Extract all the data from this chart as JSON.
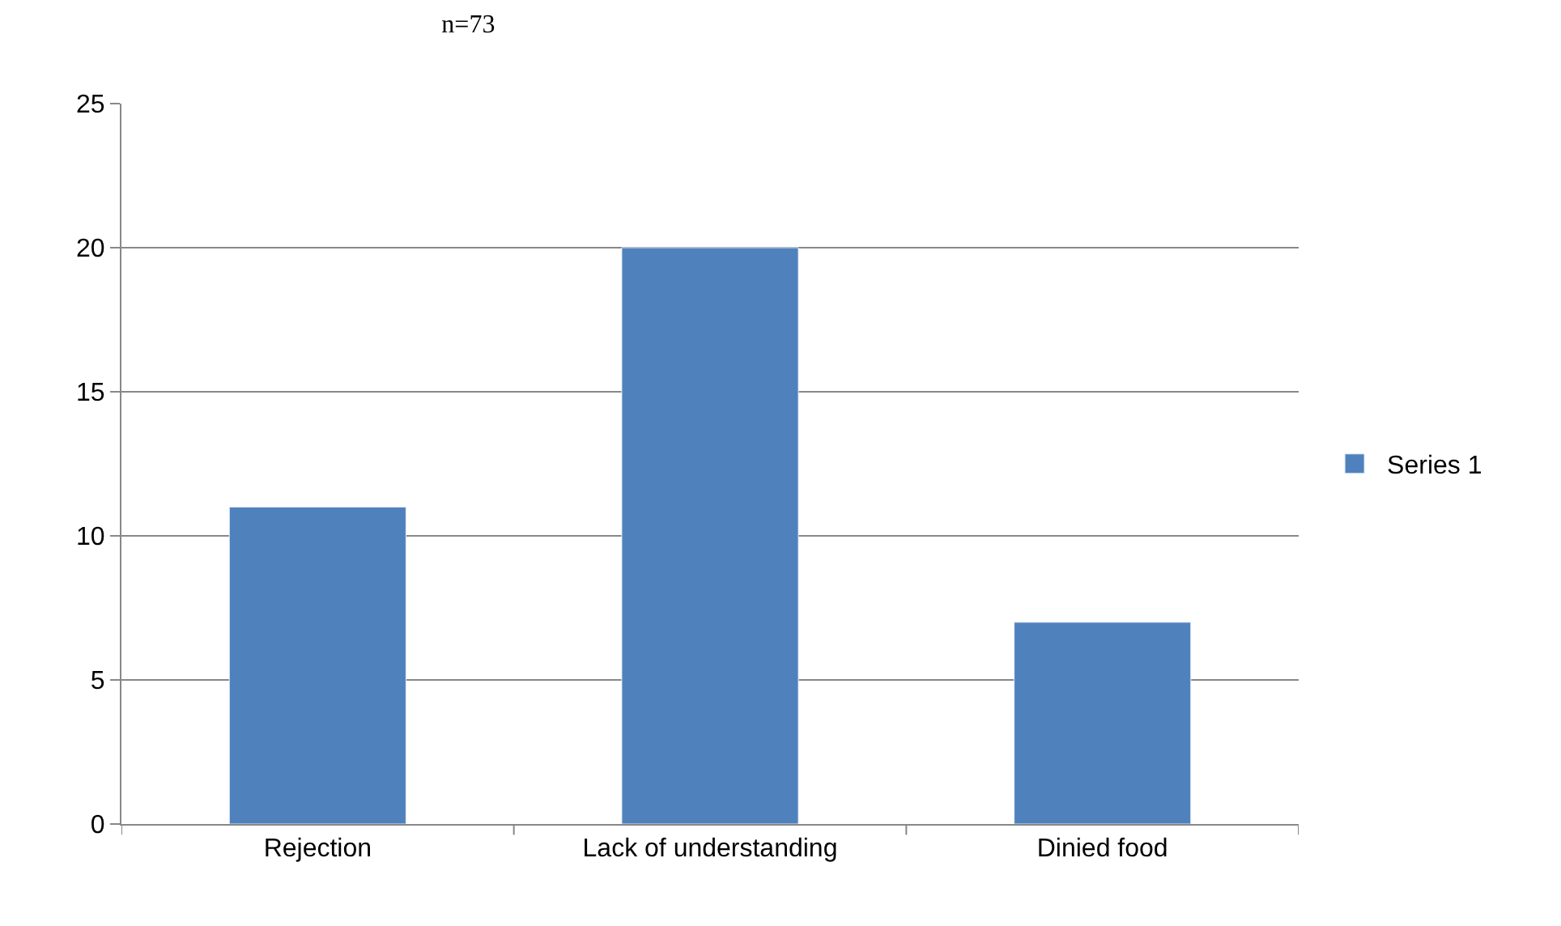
{
  "chart_data": {
    "type": "bar",
    "title": "n=73",
    "categories": [
      "Rejection",
      "Lack of understanding",
      "Dinied food"
    ],
    "series": [
      {
        "name": "Series 1",
        "color": "#4f81bd",
        "values": [
          11,
          20,
          7
        ]
      }
    ],
    "ylim": [
      0,
      25
    ],
    "yticks": [
      0,
      5,
      10,
      15,
      20,
      25
    ],
    "grid": "y",
    "legend": "right"
  }
}
